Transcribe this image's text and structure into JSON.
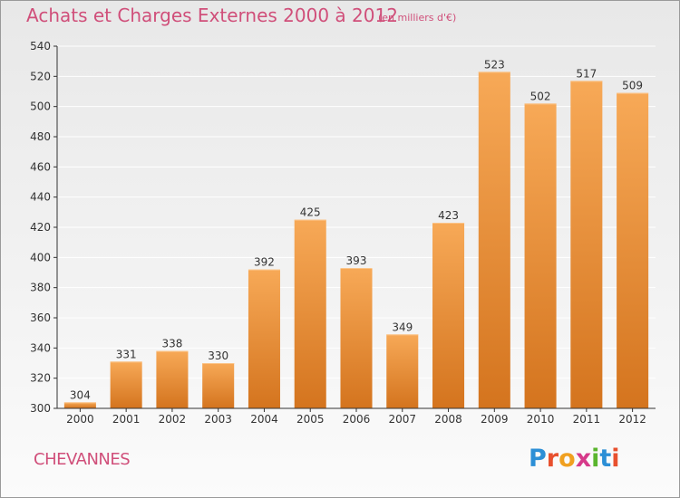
{
  "title": "Achats et Charges Externes 2000 à 2012",
  "subtitle": "(en milliers d'€)",
  "commune": "CHEVANNES",
  "logo_text": "Proxiti",
  "colors": {
    "title": "#d04f7a",
    "bar_top": "#f7a957",
    "bar_bottom": "#d4741e",
    "axis": "#333333",
    "grid": "#ffffff"
  },
  "chart_data": {
    "type": "bar",
    "categories": [
      "2000",
      "2001",
      "2002",
      "2003",
      "2004",
      "2005",
      "2006",
      "2007",
      "2008",
      "2009",
      "2010",
      "2011",
      "2012"
    ],
    "values": [
      304,
      331,
      338,
      330,
      392,
      425,
      393,
      349,
      423,
      523,
      502,
      517,
      509
    ],
    "ylim": [
      300,
      540
    ],
    "yticks": [
      300,
      320,
      340,
      360,
      380,
      400,
      420,
      440,
      460,
      480,
      500,
      520,
      540
    ],
    "grid": true,
    "data_labels": true
  }
}
